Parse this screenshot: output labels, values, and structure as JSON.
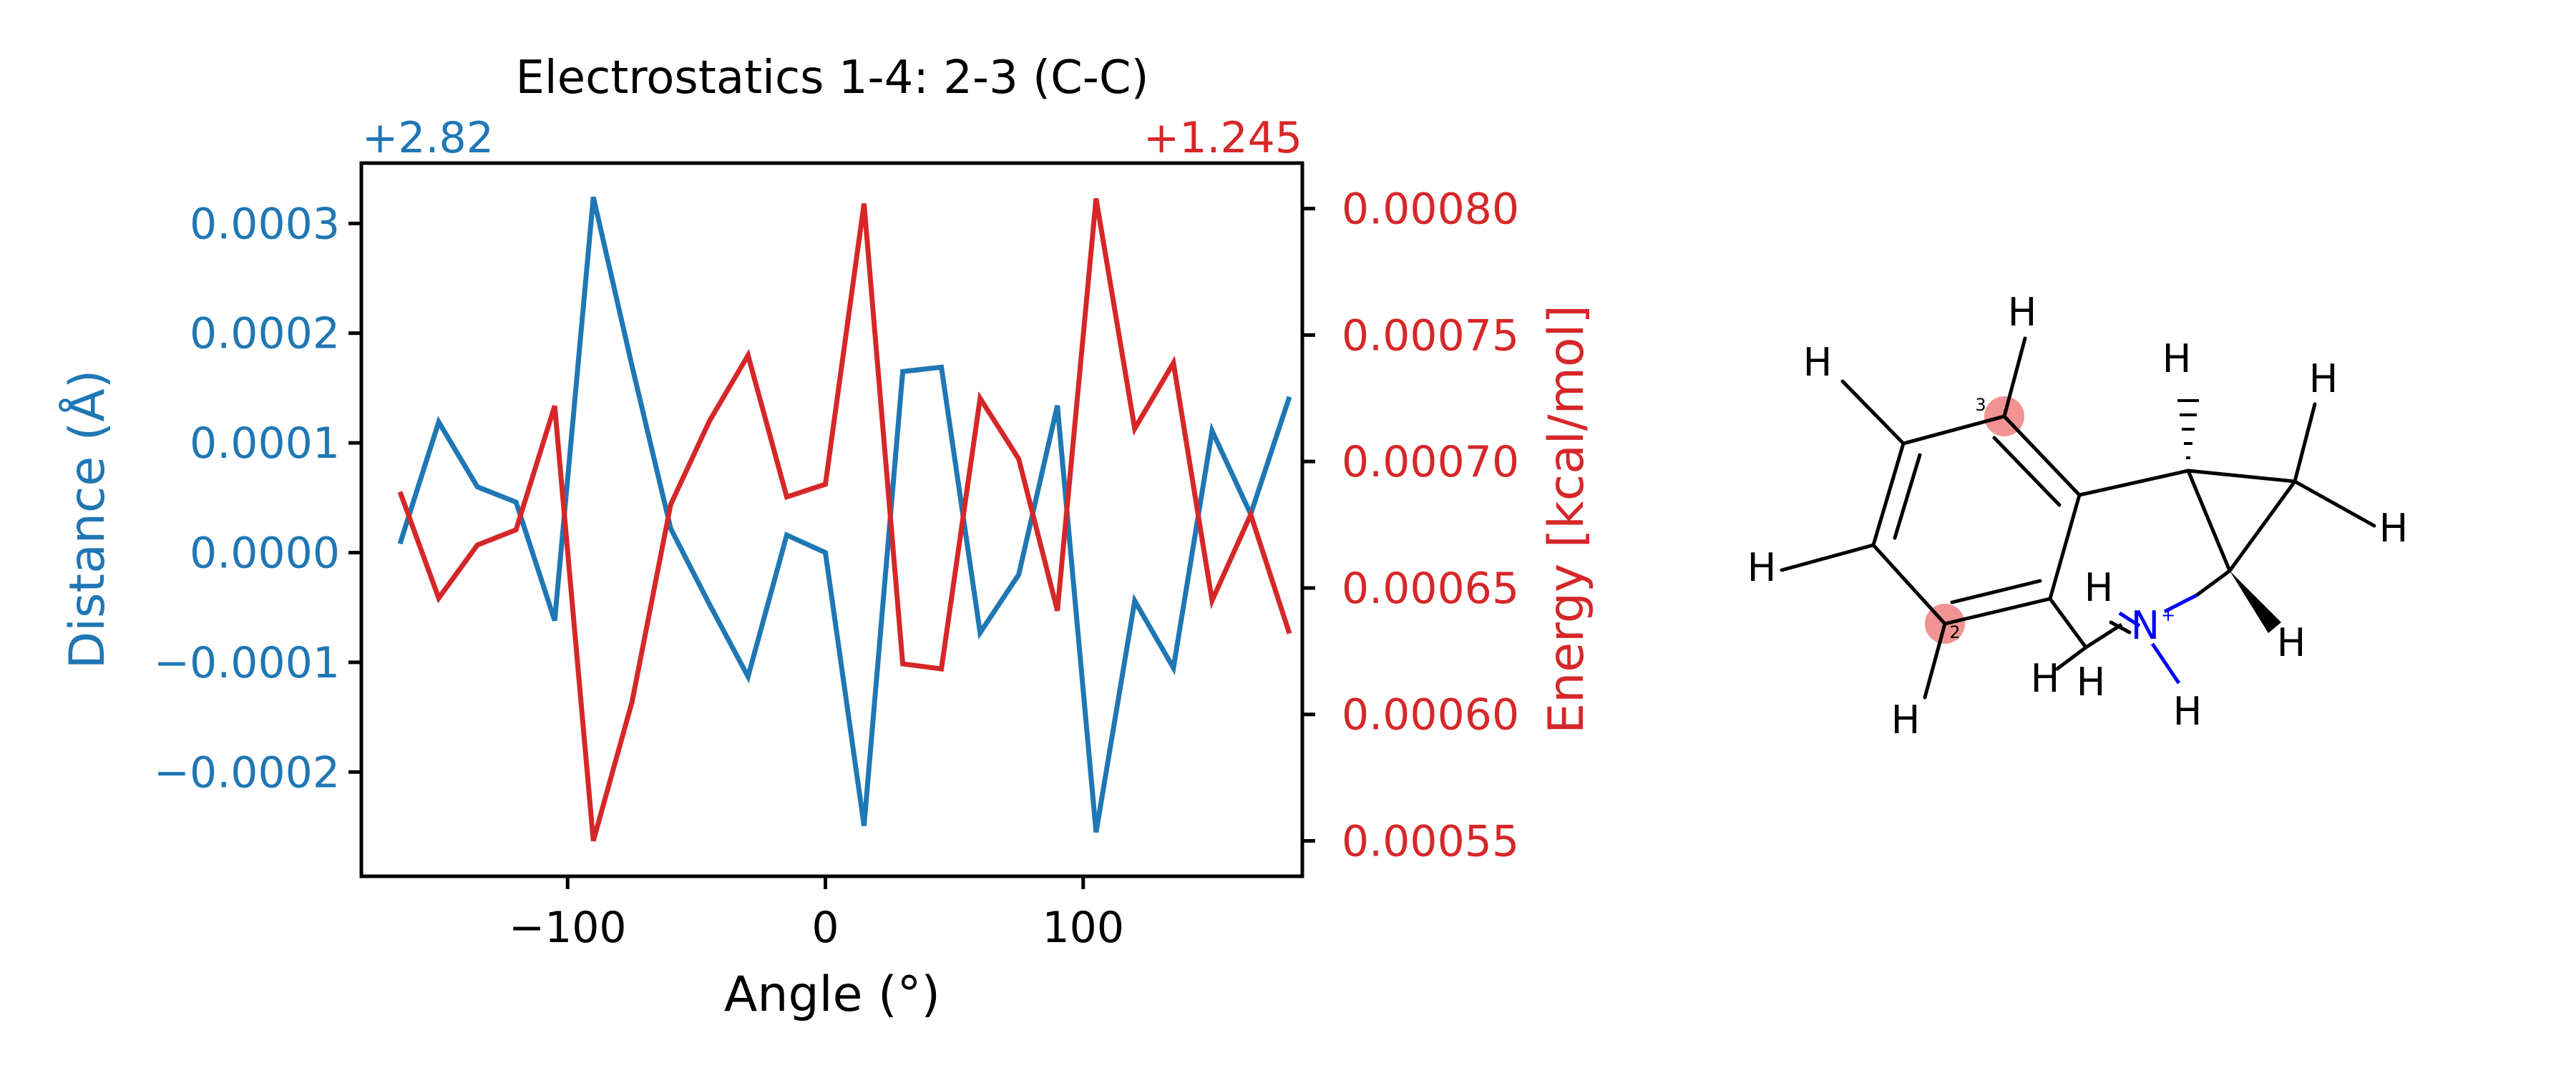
{
  "colors": {
    "distance": "#1f77b4",
    "energy": "#d62728",
    "axes": "#000000",
    "highlight": "#f08080",
    "nitrogen": "#0000ff"
  },
  "chart_data": {
    "type": "line",
    "title": "Electrostatics 1-4: 2-3 (C-C)",
    "xlabel": "Angle (°)",
    "xlim": [
      -180,
      185
    ],
    "x_ticks": [
      -100,
      0,
      100
    ],
    "x_tick_labels": [
      "−100",
      "0",
      "100"
    ],
    "y_left": {
      "label": "Distance (Å)",
      "offset": "+2.82",
      "lim": [
        -0.000295,
        0.000355
      ],
      "ticks": [
        -0.0002,
        -0.0001,
        0.0,
        0.0001,
        0.0002,
        0.0003
      ],
      "tick_labels": [
        "−0.0002",
        "−0.0001",
        "0.0000",
        "0.0001",
        "0.0002",
        "0.0003"
      ]
    },
    "y_right": {
      "label": "Energy [kcal/mol]",
      "offset": "+1.245",
      "lim": [
        0.000536,
        0.000818
      ],
      "ticks": [
        0.00055,
        0.0006,
        0.00065,
        0.0007,
        0.00075,
        0.0008
      ],
      "tick_labels": [
        "0.00055",
        "0.00060",
        "0.00065",
        "0.00070",
        "0.00075",
        "0.00080"
      ]
    },
    "x": [
      -165,
      -150,
      -135,
      -120,
      -105,
      -90,
      -75,
      -60,
      -45,
      -30,
      -15,
      0,
      15,
      30,
      45,
      60,
      75,
      90,
      105,
      120,
      135,
      150,
      165,
      180
    ],
    "series": [
      {
        "axis": "left",
        "color": "#1f77b4",
        "values": [
          8e-06,
          0.000119,
          6e-05,
          4.6e-05,
          -6.2e-05,
          0.000324,
          0.00017,
          2.2e-05,
          -4.7e-05,
          -0.000113,
          1.6e-05,
          0.0,
          -0.000249,
          0.000165,
          0.000169,
          -7.3e-05,
          -2e-05,
          0.000134,
          -0.000255,
          -4.4e-05,
          -0.000105,
          0.000111,
          3.5e-05,
          0.000142
        ]
      },
      {
        "axis": "right",
        "color": "#d62728",
        "values": [
          0.000688,
          0.000646,
          0.000667,
          0.000673,
          0.000722,
          0.00055,
          0.000605,
          0.000683,
          0.000716,
          0.000742,
          0.000686,
          0.000691,
          0.000802,
          0.00062,
          0.000618,
          0.000725,
          0.000701,
          0.000641,
          0.000804,
          0.000713,
          0.000739,
          0.000645,
          0.000679,
          0.000632
        ]
      }
    ]
  },
  "molecule": {
    "atom_labels": {
      "h": "H",
      "n": "N",
      "n_charge": "+",
      "num_2": "2",
      "num_3": "3"
    }
  }
}
